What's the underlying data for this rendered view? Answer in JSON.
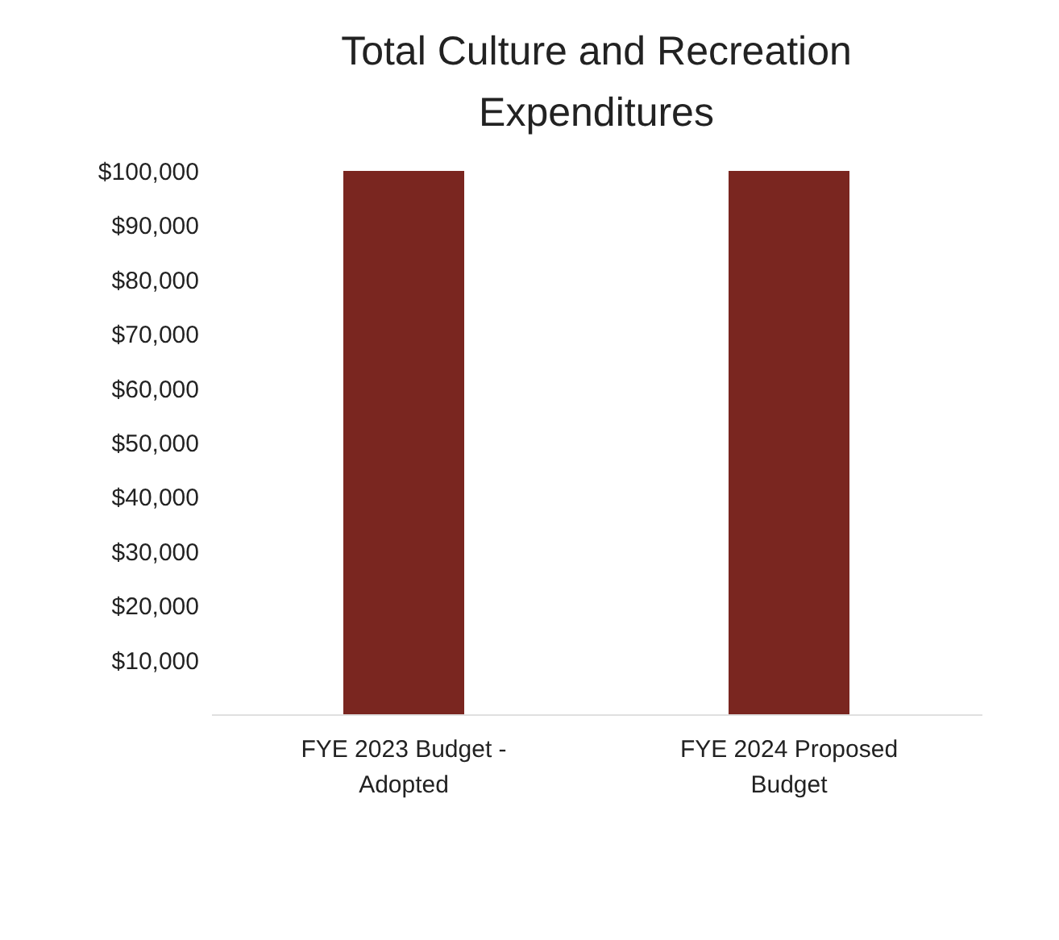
{
  "chart_data": {
    "type": "bar",
    "title": "Total Culture and Recreation Expenditures",
    "categories": [
      "FYE 2023 Budget - Adopted",
      "FYE 2024 Proposed Budget"
    ],
    "values": [
      100000,
      100000
    ],
    "color": "#7a2620",
    "ylim": [
      0,
      100000
    ],
    "yticks": [
      {
        "value": 10000,
        "label": "$10,000"
      },
      {
        "value": 20000,
        "label": "$20,000"
      },
      {
        "value": 30000,
        "label": "$30,000"
      },
      {
        "value": 40000,
        "label": "$40,000"
      },
      {
        "value": 50000,
        "label": "$50,000"
      },
      {
        "value": 60000,
        "label": "$60,000"
      },
      {
        "value": 70000,
        "label": "$70,000"
      },
      {
        "value": 80000,
        "label": "$80,000"
      },
      {
        "value": 90000,
        "label": "$90,000"
      },
      {
        "value": 100000,
        "label": "$100,000"
      }
    ],
    "grid": false
  }
}
